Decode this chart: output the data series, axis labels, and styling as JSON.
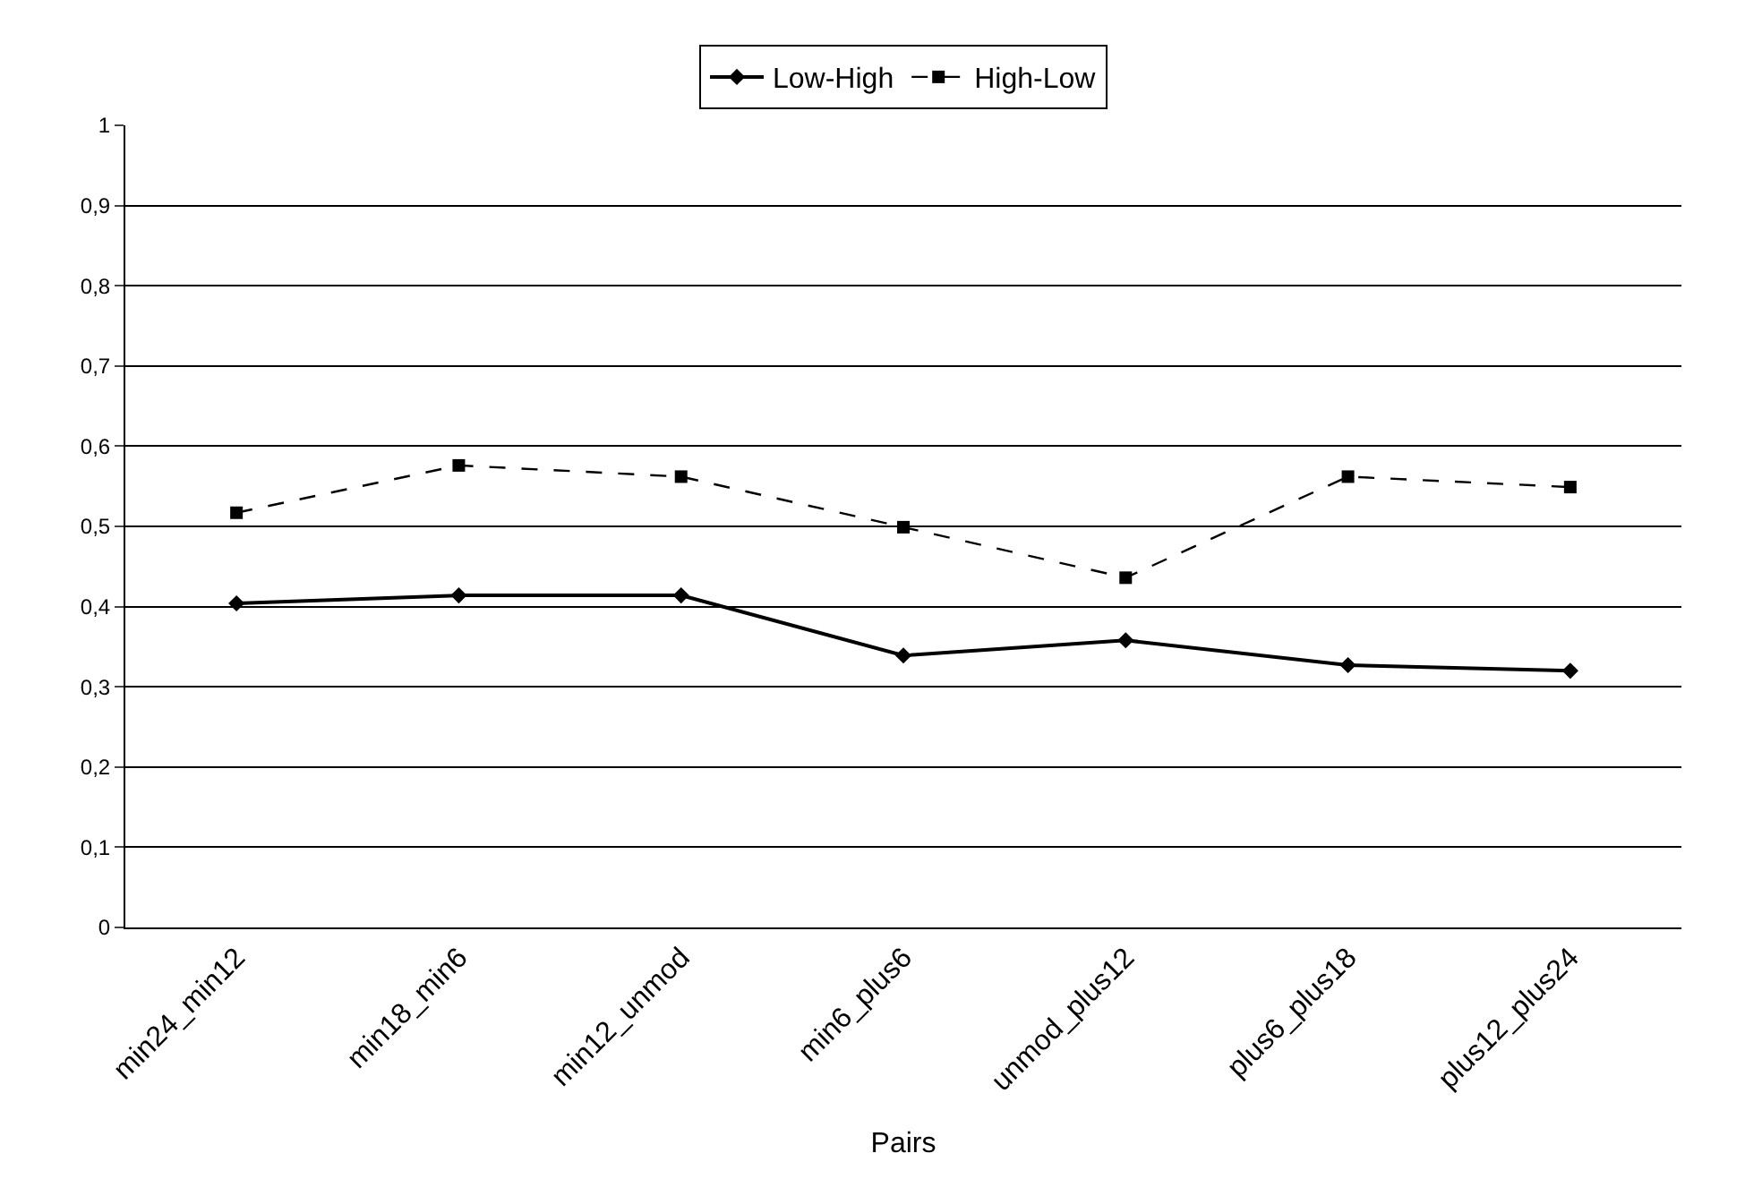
{
  "chart_data": {
    "type": "line",
    "xlabel": "Pairs",
    "categories": [
      "min24_min12",
      "min18_min6",
      "min12_unmod",
      "min6_plus6",
      "unmod_plus12",
      "plus6_plus18",
      "plus12_plus24"
    ],
    "series": [
      {
        "name": "Low-High",
        "color": "#000000",
        "marker": "diamond",
        "line_style": "solid",
        "values": [
          0.404,
          0.414,
          0.414,
          0.339,
          0.358,
          0.327,
          0.32
        ]
      },
      {
        "name": "High-Low",
        "color": "#000000",
        "marker": "square",
        "line_style": "dashed",
        "values": [
          0.517,
          0.576,
          0.562,
          0.499,
          0.436,
          0.562,
          0.549
        ]
      }
    ],
    "ylim": [
      0,
      1
    ],
    "yticks": [
      0,
      {
        "value": 0.1,
        "label": "0,1"
      },
      {
        "value": 0.2,
        "label": "0,2"
      },
      {
        "value": 0.3,
        "label": "0,3"
      },
      {
        "value": 0.4,
        "label": "0,4"
      },
      {
        "value": 0.5,
        "label": "0,5"
      },
      {
        "value": 0.6,
        "label": "0,6"
      },
      {
        "value": 0.7,
        "label": "0,7"
      },
      {
        "value": 0.8,
        "label": "0,8"
      },
      {
        "value": 0.9,
        "label": "0,9"
      },
      1
    ],
    "grid": "y",
    "legend": "top"
  }
}
